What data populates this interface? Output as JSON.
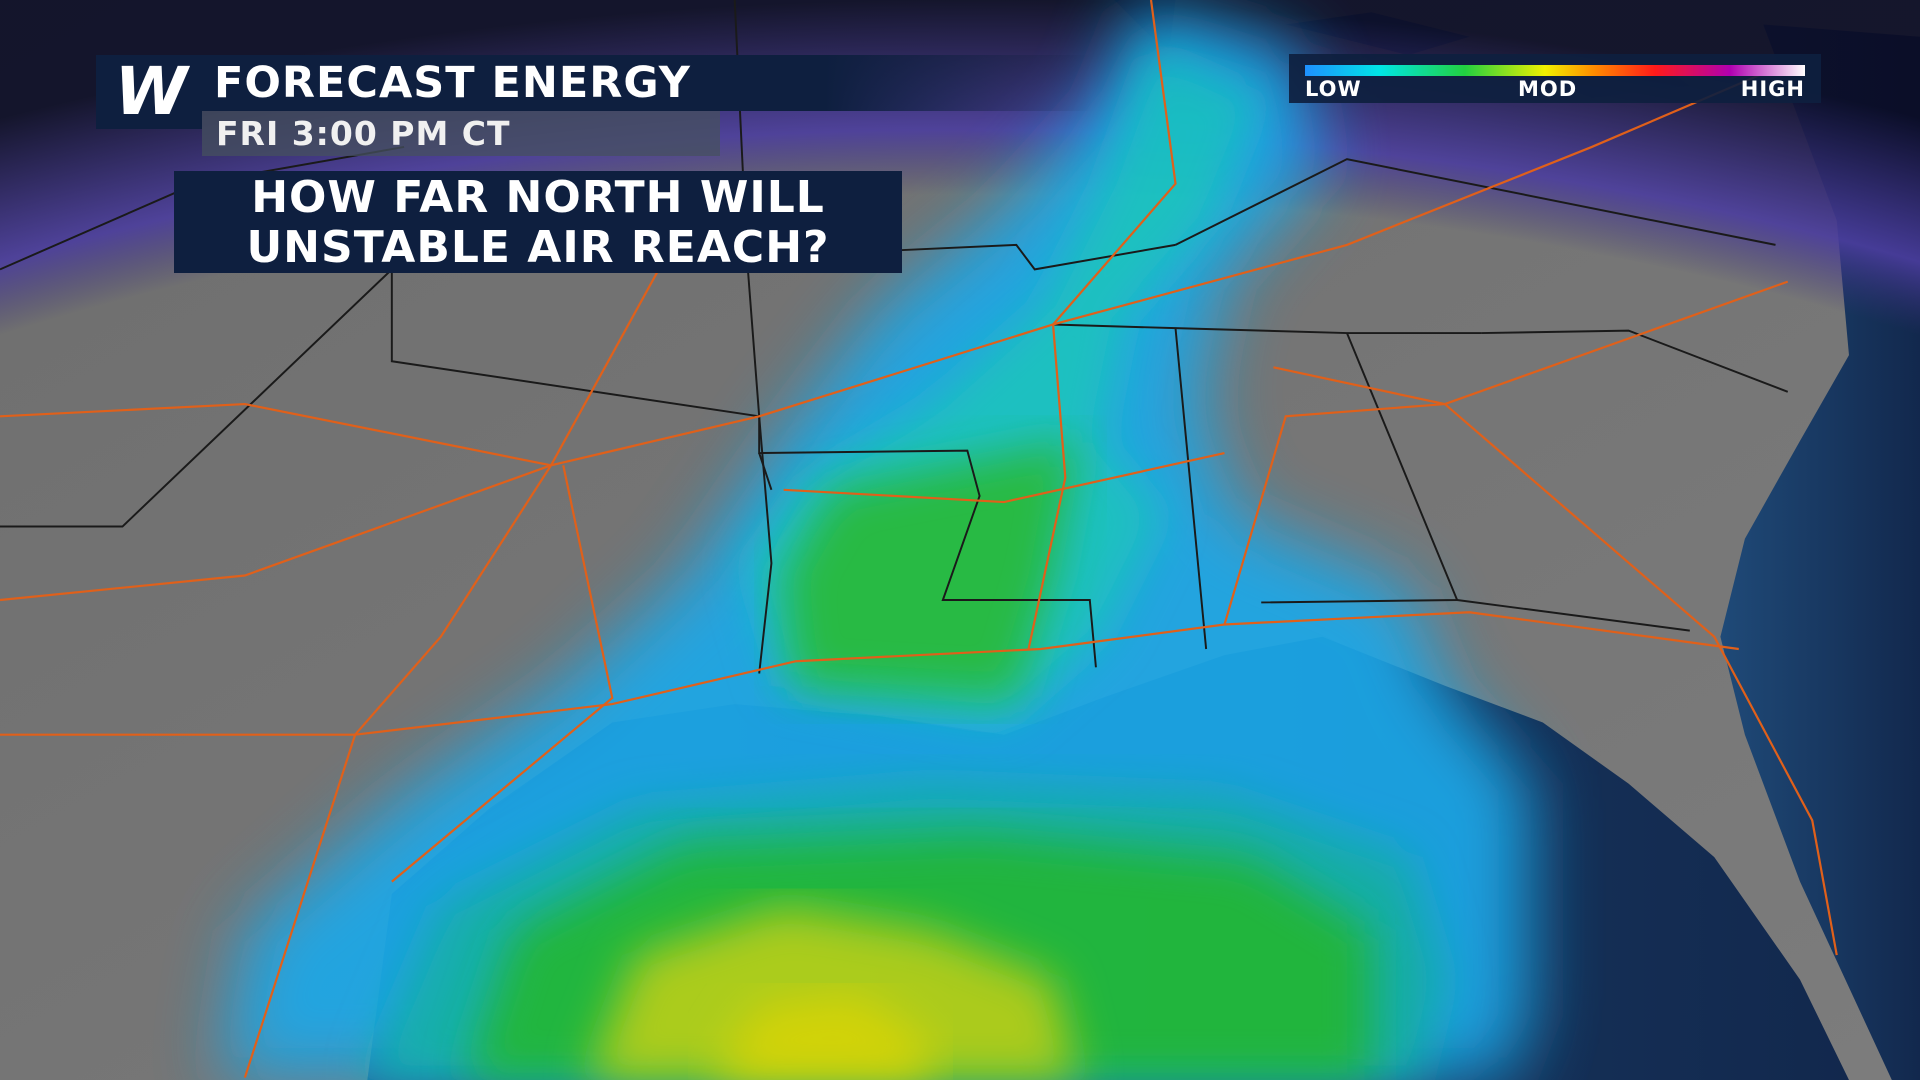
{
  "header": {
    "logo": "W",
    "title": "FORECAST ENERGY",
    "time": "FRI 3:00 PM CT"
  },
  "question": {
    "lines": [
      "HOW FAR NORTH WILL",
      "UNSTABLE AIR REACH?"
    ]
  },
  "legend": {
    "labels": [
      "LOW",
      "MOD",
      "HIGH"
    ]
  }
}
